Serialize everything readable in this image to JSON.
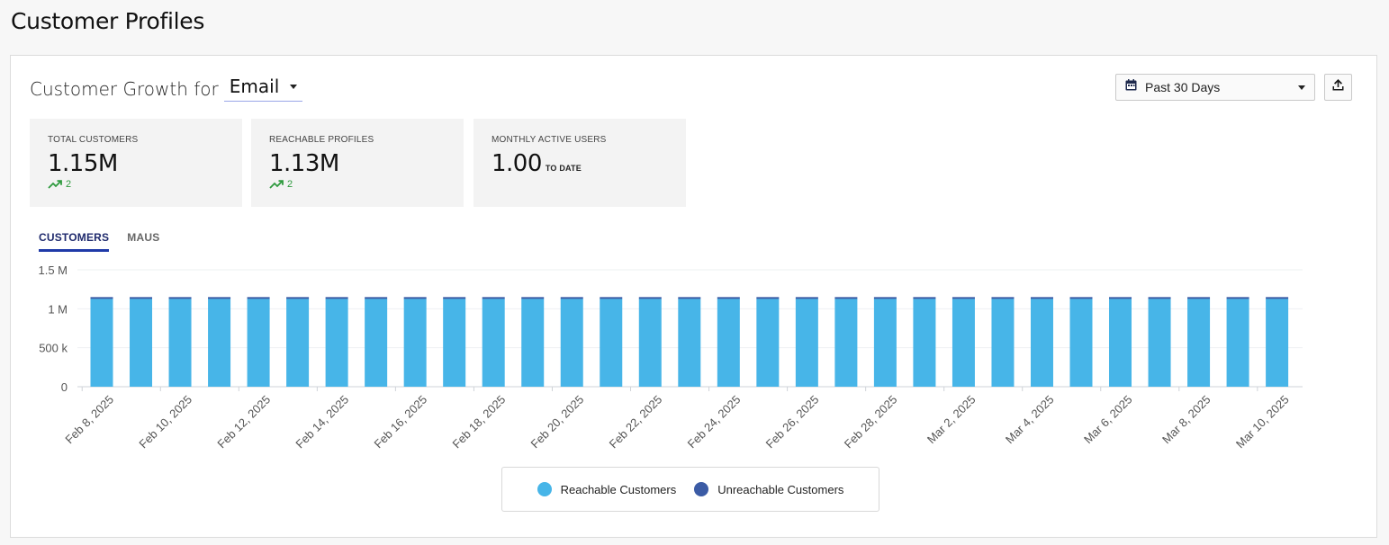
{
  "page": {
    "title": "Customer Profiles"
  },
  "header": {
    "growth_label": "Customer Growth for",
    "channel_value": "Email",
    "date_range": "Past 30 Days"
  },
  "stats": [
    {
      "title": "TOTAL CUSTOMERS",
      "value": "1.15M",
      "trend": "2"
    },
    {
      "title": "REACHABLE PROFILES",
      "value": "1.13M",
      "trend": "2"
    },
    {
      "title": "MONTHLY ACTIVE USERS",
      "value": "1.00",
      "suffix": "TO DATE"
    }
  ],
  "tabs": [
    {
      "label": "CUSTOMERS",
      "active": true
    },
    {
      "label": "MAUS",
      "active": false
    }
  ],
  "colors": {
    "reachable": "#47b5e8",
    "unreachable": "#3b5ba5",
    "trend_up": "#2e9a3e",
    "tab_active": "#1f3aa8"
  },
  "chart_data": {
    "type": "bar",
    "stacked": true,
    "categories": [
      "Feb 8, 2025",
      "Feb 9, 2025",
      "Feb 10, 2025",
      "Feb 11, 2025",
      "Feb 12, 2025",
      "Feb 13, 2025",
      "Feb 14, 2025",
      "Feb 15, 2025",
      "Feb 16, 2025",
      "Feb 17, 2025",
      "Feb 18, 2025",
      "Feb 19, 2025",
      "Feb 20, 2025",
      "Feb 21, 2025",
      "Feb 22, 2025",
      "Feb 23, 2025",
      "Feb 24, 2025",
      "Feb 25, 2025",
      "Feb 26, 2025",
      "Feb 27, 2025",
      "Feb 28, 2025",
      "Mar 1, 2025",
      "Mar 2, 2025",
      "Mar 3, 2025",
      "Mar 4, 2025",
      "Mar 5, 2025",
      "Mar 6, 2025",
      "Mar 7, 2025",
      "Mar 8, 2025",
      "Mar 9, 2025",
      "Mar 10, 2025"
    ],
    "tick_labels": [
      "Feb 8, 2025",
      "Feb 10, 2025",
      "Feb 12, 2025",
      "Feb 14, 2025",
      "Feb 16, 2025",
      "Feb 18, 2025",
      "Feb 20, 2025",
      "Feb 22, 2025",
      "Feb 24, 2025",
      "Feb 26, 2025",
      "Feb 28, 2025",
      "Mar 2, 2025",
      "Mar 4, 2025",
      "Mar 6, 2025",
      "Mar 8, 2025",
      "Mar 10, 2025"
    ],
    "series": [
      {
        "name": "Reachable Customers",
        "values": [
          1130000,
          1130000,
          1130000,
          1130000,
          1130000,
          1130000,
          1130000,
          1130000,
          1130000,
          1130000,
          1130000,
          1130000,
          1130000,
          1130000,
          1130000,
          1130000,
          1130000,
          1130000,
          1130000,
          1130000,
          1130000,
          1130000,
          1130000,
          1130000,
          1130000,
          1130000,
          1130000,
          1130000,
          1130000,
          1130000,
          1130000
        ]
      },
      {
        "name": "Unreachable Customers",
        "values": [
          20000,
          20000,
          20000,
          20000,
          20000,
          20000,
          20000,
          20000,
          20000,
          20000,
          20000,
          20000,
          20000,
          20000,
          20000,
          20000,
          20000,
          20000,
          20000,
          20000,
          20000,
          20000,
          20000,
          20000,
          20000,
          20000,
          20000,
          20000,
          20000,
          20000,
          20000
        ]
      }
    ],
    "yticks": [
      {
        "value": 0,
        "label": "0"
      },
      {
        "value": 500000,
        "label": "500 k"
      },
      {
        "value": 1000000,
        "label": "1 M"
      },
      {
        "value": 1500000,
        "label": "1.5 M"
      }
    ],
    "ylim": [
      0,
      1500000
    ],
    "grid": true,
    "legend_position": "bottom"
  }
}
